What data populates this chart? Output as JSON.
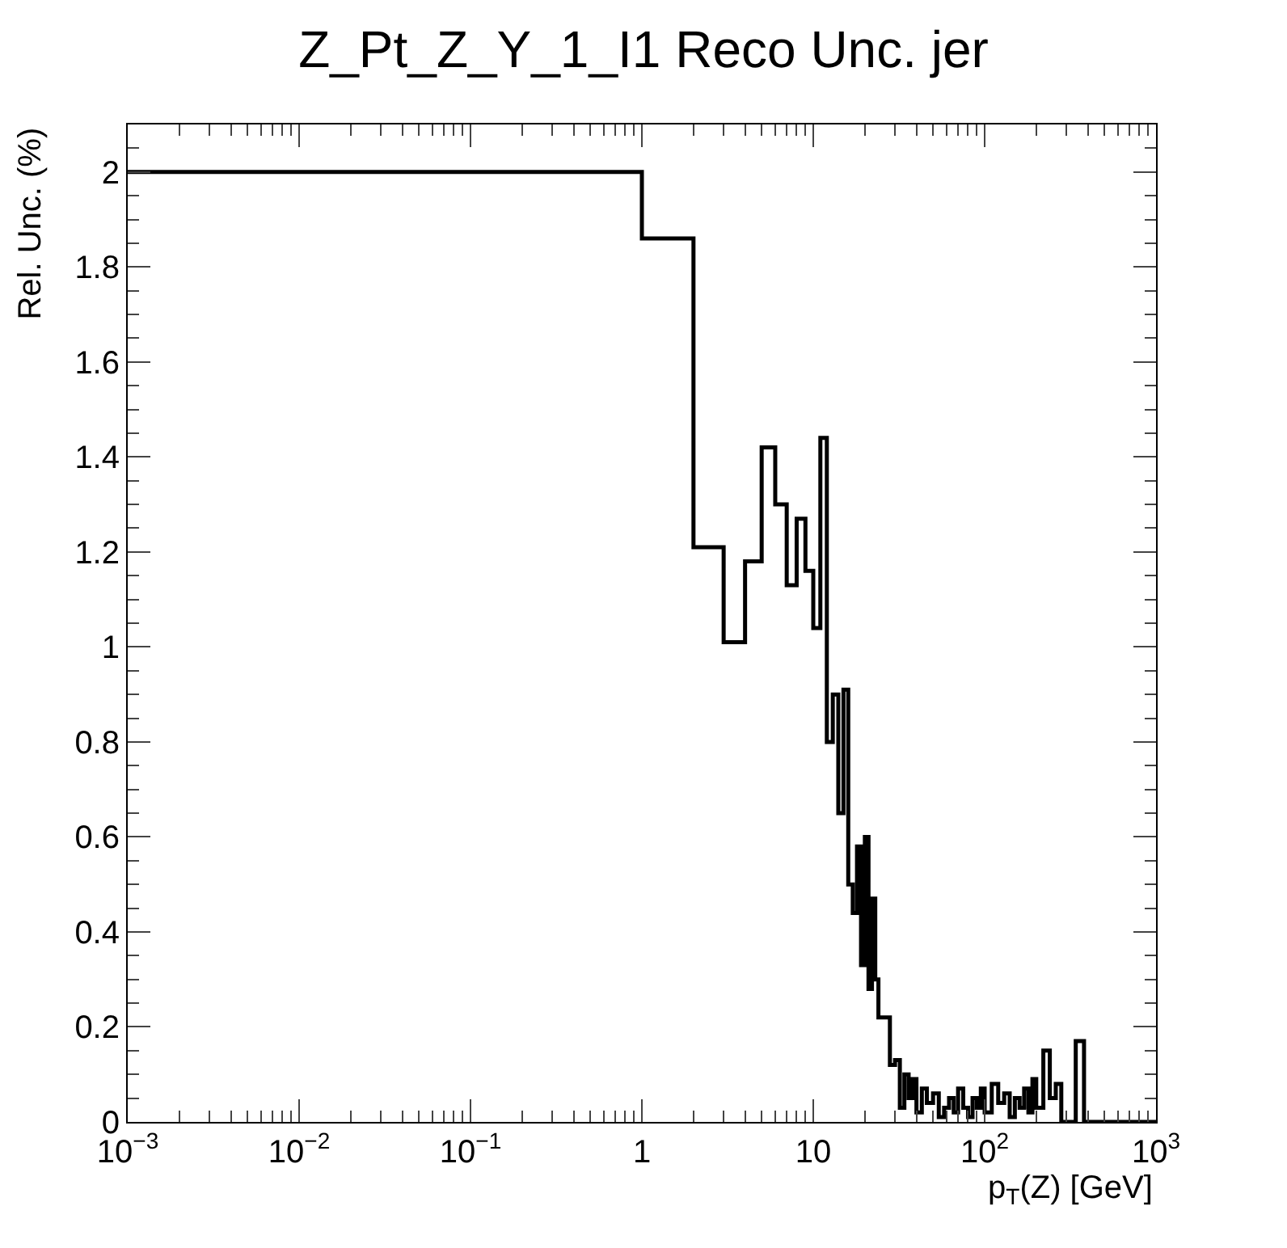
{
  "chart_data": {
    "type": "histogram",
    "title": "Z_Pt_Z_Y_1_I1 Reco Unc. jer",
    "xlabel": "p$_{T}$(Z) [GeV]",
    "ylabel": "Rel. Unc. (%)",
    "log": "x",
    "color": "#000000",
    "xlim": [
      0.001,
      1000
    ],
    "xticks": [
      {
        "value": 0.001,
        "label": "10$^{−3}$"
      },
      {
        "value": 0.01,
        "label": "10$^{−2}$"
      },
      {
        "value": 0.1,
        "label": "10$^{−1}$"
      },
      1,
      10,
      {
        "value": 100,
        "label": "10$^{2}$"
      },
      {
        "value": 1000,
        "label": "10$^{3}$"
      }
    ],
    "ylim": [
      0,
      2.1
    ],
    "yticks": [
      0,
      0.2,
      0.4,
      0.6,
      0.8,
      1,
      1.2,
      1.4,
      1.6,
      1.8,
      2
    ],
    "bins": [
      0.001,
      1,
      2,
      3,
      4,
      5,
      6,
      7,
      8,
      9,
      10,
      11,
      12,
      13,
      14,
      15,
      16,
      17,
      18,
      19,
      20,
      21,
      22,
      23,
      24,
      25,
      26,
      28,
      30,
      32,
      34,
      36,
      38,
      40,
      43,
      46,
      50,
      54,
      58,
      62,
      66,
      70,
      75,
      80,
      85,
      90,
      95,
      100,
      110,
      120,
      130,
      140,
      150,
      160,
      170,
      180,
      190,
      200,
      220,
      240,
      260,
      280,
      300,
      340,
      380,
      1000
    ],
    "values": [
      2.0,
      1.86,
      1.21,
      1.01,
      1.18,
      1.42,
      1.3,
      1.13,
      1.27,
      1.16,
      1.04,
      1.44,
      0.8,
      0.9,
      0.65,
      0.91,
      0.5,
      0.44,
      0.58,
      0.33,
      0.6,
      0.28,
      0.47,
      0.3,
      0.22,
      0.22,
      0.22,
      0.12,
      0.13,
      0.03,
      0.1,
      0.05,
      0.09,
      0.02,
      0.07,
      0.04,
      0.06,
      0.01,
      0.03,
      0.05,
      0.02,
      0.07,
      0.03,
      0.01,
      0.05,
      0.03,
      0.07,
      0.02,
      0.08,
      0.04,
      0.06,
      0.01,
      0.05,
      0.03,
      0.07,
      0.02,
      0.09,
      0.03,
      0.15,
      0.05,
      0.08,
      0.0,
      0.0,
      0.17,
      0.0
    ]
  }
}
